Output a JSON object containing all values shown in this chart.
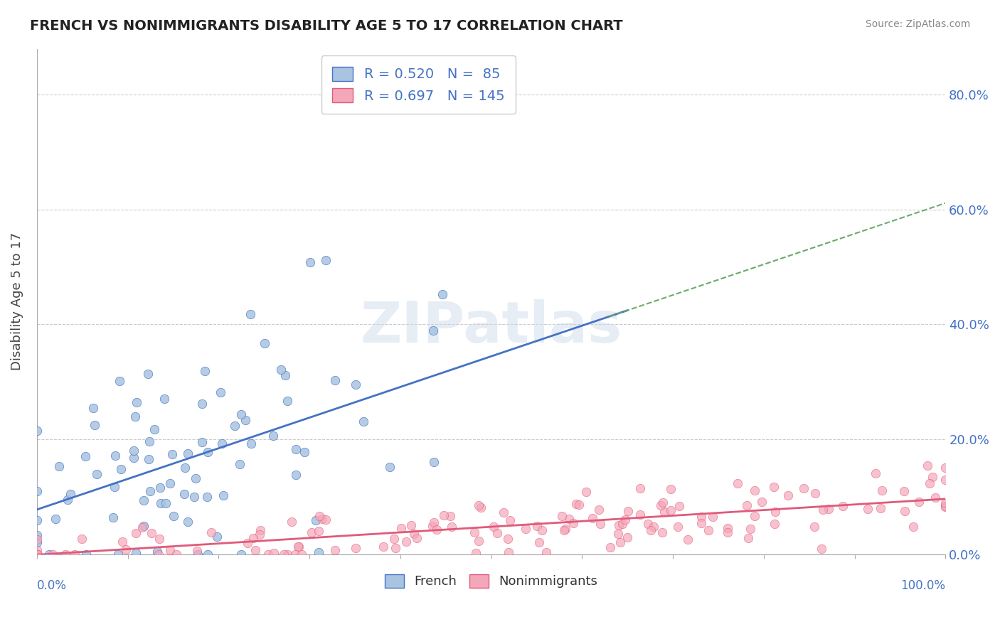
{
  "title": "FRENCH VS NONIMMIGRANTS DISABILITY AGE 5 TO 17 CORRELATION CHART",
  "source": "Source: ZipAtlas.com",
  "ylabel": "Disability Age 5 to 17",
  "french_R": 0.52,
  "french_N": 85,
  "nonimm_R": 0.697,
  "nonimm_N": 145,
  "french_color": "#a8c4e0",
  "french_line_color": "#4472c4",
  "nonimm_color": "#f4a7b9",
  "nonimm_line_color": "#e05a7a",
  "dashed_line_color": "#6aaa6a",
  "watermark": "ZIPatlas",
  "background_color": "#ffffff",
  "grid_color": "#cccccc",
  "title_color": "#222222",
  "yticks_pct": [
    "0.0%",
    "20.0%",
    "40.0%",
    "60.0%",
    "80.0%"
  ],
  "ytick_vals": [
    0.0,
    0.2,
    0.4,
    0.6,
    0.8
  ],
  "xlim": [
    0.0,
    1.0
  ],
  "ylim": [
    0.0,
    0.88
  ]
}
